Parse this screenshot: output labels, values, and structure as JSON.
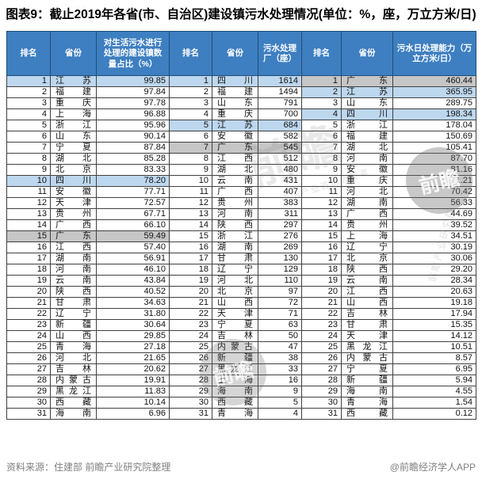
{
  "title": "图表9：截止2019年各省(市、自治区)建设镇污水处理情况(单位：%，座，万立方米/日)",
  "colors": {
    "header_bg": "#3E7FC1",
    "header_border": "#1E4E79",
    "body_border": "#404040",
    "highlight_blue": "#BDD7EE",
    "highlight_gray": "#C6C6C6",
    "footer_text": "#808080"
  },
  "table": {
    "groups": [
      {
        "rank_label": "排名",
        "province_label": "省份",
        "value_label": "对生活污水进行处理的建设镇数量占比（%）"
      },
      {
        "rank_label": "排名",
        "province_label": "省份",
        "value_label": "污水处理厂（座）"
      },
      {
        "rank_label": "排名",
        "province_label": "省份",
        "value_label": "污水日处理能力（万立方米/日）"
      }
    ],
    "highlights": {
      "江苏": "blue",
      "四川": "blue",
      "广东": "gray"
    },
    "rows": [
      [
        {
          "rank": "1",
          "province": "江苏",
          "value": "99.85"
        },
        {
          "rank": "1",
          "province": "四川",
          "value": "1614"
        },
        {
          "rank": "1",
          "province": "广东",
          "value": "460.44"
        }
      ],
      [
        {
          "rank": "2",
          "province": "福建",
          "value": "97.84"
        },
        {
          "rank": "2",
          "province": "福建",
          "value": "1494"
        },
        {
          "rank": "2",
          "province": "江苏",
          "value": "365.95"
        }
      ],
      [
        {
          "rank": "3",
          "province": "重庆",
          "value": "97.78"
        },
        {
          "rank": "3",
          "province": "山东",
          "value": "791"
        },
        {
          "rank": "3",
          "province": "山东",
          "value": "289.75"
        }
      ],
      [
        {
          "rank": "4",
          "province": "上海",
          "value": "96.88"
        },
        {
          "rank": "4",
          "province": "重庆",
          "value": "700"
        },
        {
          "rank": "4",
          "province": "四川",
          "value": "198.34"
        }
      ],
      [
        {
          "rank": "5",
          "province": "浙江",
          "value": "95.96"
        },
        {
          "rank": "5",
          "province": "江苏",
          "value": "684"
        },
        {
          "rank": "5",
          "province": "浙江",
          "value": "178.04"
        }
      ],
      [
        {
          "rank": "6",
          "province": "山东",
          "value": "90.14"
        },
        {
          "rank": "6",
          "province": "安徽",
          "value": "582"
        },
        {
          "rank": "6",
          "province": "福建",
          "value": "150.69"
        }
      ],
      [
        {
          "rank": "7",
          "province": "宁夏",
          "value": "87.84"
        },
        {
          "rank": "7",
          "province": "广东",
          "value": "545"
        },
        {
          "rank": "7",
          "province": "湖北",
          "value": "105.41"
        }
      ],
      [
        {
          "rank": "8",
          "province": "湖北",
          "value": "85.28"
        },
        {
          "rank": "8",
          "province": "江西",
          "value": "512"
        },
        {
          "rank": "8",
          "province": "河南",
          "value": "87.70"
        }
      ],
      [
        {
          "rank": "9",
          "province": "北京",
          "value": "83.33"
        },
        {
          "rank": "9",
          "province": "湖北",
          "value": "480"
        },
        {
          "rank": "9",
          "province": "安徽",
          "value": "81.16"
        }
      ],
      [
        {
          "rank": "10",
          "province": "四川",
          "value": "78.20"
        },
        {
          "rank": "10",
          "province": "云南",
          "value": "431"
        },
        {
          "rank": "10",
          "province": "重庆",
          "value": "71.21"
        }
      ],
      [
        {
          "rank": "11",
          "province": "安徽",
          "value": "77.71"
        },
        {
          "rank": "11",
          "province": "广西",
          "value": "407"
        },
        {
          "rank": "11",
          "province": "河北",
          "value": "70.42"
        }
      ],
      [
        {
          "rank": "12",
          "province": "天津",
          "value": "72.57"
        },
        {
          "rank": "12",
          "province": "贵州",
          "value": "383"
        },
        {
          "rank": "12",
          "province": "湖南",
          "value": "56.33"
        }
      ],
      [
        {
          "rank": "13",
          "province": "贵州",
          "value": "67.71"
        },
        {
          "rank": "13",
          "province": "河南",
          "value": "311"
        },
        {
          "rank": "13",
          "province": "广西",
          "value": "44.69"
        }
      ],
      [
        {
          "rank": "14",
          "province": "广西",
          "value": "66.10"
        },
        {
          "rank": "14",
          "province": "陕西",
          "value": "297"
        },
        {
          "rank": "14",
          "province": "贵州",
          "value": "39.52"
        }
      ],
      [
        {
          "rank": "15",
          "province": "广东",
          "value": "59.49"
        },
        {
          "rank": "15",
          "province": "浙江",
          "value": "276"
        },
        {
          "rank": "15",
          "province": "上海",
          "value": "34.51"
        }
      ],
      [
        {
          "rank": "16",
          "province": "江西",
          "value": "57.40"
        },
        {
          "rank": "16",
          "province": "湖南",
          "value": "269"
        },
        {
          "rank": "16",
          "province": "辽宁",
          "value": "30.19"
        }
      ],
      [
        {
          "rank": "17",
          "province": "湖南",
          "value": "56.91"
        },
        {
          "rank": "17",
          "province": "甘肃",
          "value": "130"
        },
        {
          "rank": "17",
          "province": "北京",
          "value": "30.06"
        }
      ],
      [
        {
          "rank": "18",
          "province": "河南",
          "value": "46.10"
        },
        {
          "rank": "18",
          "province": "辽宁",
          "value": "129"
        },
        {
          "rank": "18",
          "province": "陕西",
          "value": "29.20"
        }
      ],
      [
        {
          "rank": "19",
          "province": "云南",
          "value": "43.84"
        },
        {
          "rank": "19",
          "province": "河北",
          "value": "110"
        },
        {
          "rank": "19",
          "province": "云南",
          "value": "28.34"
        }
      ],
      [
        {
          "rank": "20",
          "province": "陕西",
          "value": "40.52"
        },
        {
          "rank": "20",
          "province": "北京",
          "value": "97"
        },
        {
          "rank": "20",
          "province": "江西",
          "value": "20.63"
        }
      ],
      [
        {
          "rank": "21",
          "province": "甘肃",
          "value": "34.63"
        },
        {
          "rank": "21",
          "province": "山西",
          "value": "72"
        },
        {
          "rank": "21",
          "province": "山西",
          "value": "19.18"
        }
      ],
      [
        {
          "rank": "22",
          "province": "辽宁",
          "value": "31.80"
        },
        {
          "rank": "22",
          "province": "天津",
          "value": "71"
        },
        {
          "rank": "22",
          "province": "吉林",
          "value": "17.94"
        }
      ],
      [
        {
          "rank": "23",
          "province": "新疆",
          "value": "30.64"
        },
        {
          "rank": "23",
          "province": "宁夏",
          "value": "63"
        },
        {
          "rank": "23",
          "province": "甘肃",
          "value": "15.35"
        }
      ],
      [
        {
          "rank": "24",
          "province": "山西",
          "value": "29.85"
        },
        {
          "rank": "24",
          "province": "吉林",
          "value": "50"
        },
        {
          "rank": "24",
          "province": "天津",
          "value": "14.12"
        }
      ],
      [
        {
          "rank": "25",
          "province": "青海",
          "value": "27.18"
        },
        {
          "rank": "25",
          "province": "内蒙古",
          "value": "47"
        },
        {
          "rank": "25",
          "province": "黑龙江",
          "value": "10.51"
        }
      ],
      [
        {
          "rank": "26",
          "province": "河北",
          "value": "21.65"
        },
        {
          "rank": "26",
          "province": "新疆",
          "value": "38"
        },
        {
          "rank": "26",
          "province": "内蒙古",
          "value": "8.57"
        }
      ],
      [
        {
          "rank": "27",
          "province": "吉林",
          "value": "20.62"
        },
        {
          "rank": "27",
          "province": "黑龙江",
          "value": "33"
        },
        {
          "rank": "27",
          "province": "宁夏",
          "value": "6.95"
        }
      ],
      [
        {
          "rank": "28",
          "province": "内蒙古",
          "value": "19.91"
        },
        {
          "rank": "28",
          "province": "上海",
          "value": "16"
        },
        {
          "rank": "28",
          "province": "新疆",
          "value": "5.94"
        }
      ],
      [
        {
          "rank": "29",
          "province": "黑龙江",
          "value": "11.83"
        },
        {
          "rank": "29",
          "province": "海南",
          "value": "9"
        },
        {
          "rank": "29",
          "province": "海南",
          "value": "4.55"
        }
      ],
      [
        {
          "rank": "30",
          "province": "西藏",
          "value": "10.14"
        },
        {
          "rank": "30",
          "province": "西藏",
          "value": "5"
        },
        {
          "rank": "30",
          "province": "青海",
          "value": "1.54"
        }
      ],
      [
        {
          "rank": "31",
          "province": "海南",
          "value": "6.96"
        },
        {
          "rank": "31",
          "province": "青海",
          "value": "4"
        },
        {
          "rank": "31",
          "province": "西藏",
          "value": "0.12"
        }
      ]
    ]
  },
  "footer": {
    "source": "资料来源：住建部 前瞻产业研究院整理",
    "credit": "@前瞻经济学人APP"
  },
  "watermark": {
    "logo_text": "前瞻",
    "tagline": "中国产业咨询领导者",
    "brand": "前瞻产业研究院"
  }
}
